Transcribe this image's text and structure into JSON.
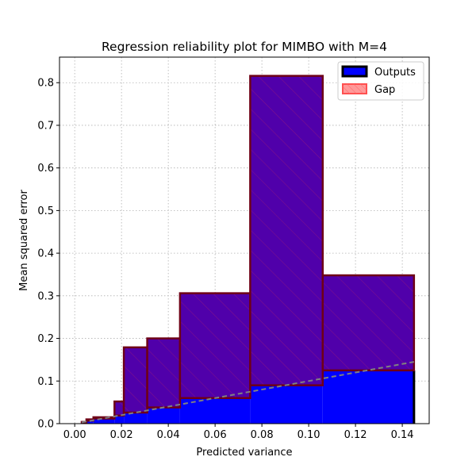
{
  "chart_data": {
    "type": "bar",
    "title": "Regression reliability plot for MIMBO with M=4",
    "xlabel": "Predicted variance",
    "ylabel": "Mean squared error",
    "xlim": [
      -0.0065,
      0.1515
    ],
    "ylim": [
      0,
      0.86
    ],
    "xticks": [
      0.0,
      0.02,
      0.04,
      0.06,
      0.08,
      0.1,
      0.12,
      0.14
    ],
    "xtick_labels": [
      "0.00",
      "0.02",
      "0.04",
      "0.06",
      "0.08",
      "0.10",
      "0.12",
      "0.14"
    ],
    "yticks": [
      0.0,
      0.1,
      0.2,
      0.3,
      0.4,
      0.5,
      0.6,
      0.7,
      0.8
    ],
    "ytick_labels": [
      "0.0",
      "0.1",
      "0.2",
      "0.3",
      "0.4",
      "0.5",
      "0.6",
      "0.7",
      "0.8"
    ],
    "grid": true,
    "legend_position": "top-right",
    "bins": [
      {
        "x0": 0.003,
        "x1": 0.005,
        "output": 0.004,
        "error": 0.003
      },
      {
        "x0": 0.005,
        "x1": 0.008,
        "output": 0.007,
        "error": 0.01
      },
      {
        "x0": 0.008,
        "x1": 0.017,
        "output": 0.012,
        "error": 0.015
      },
      {
        "x0": 0.017,
        "x1": 0.021,
        "output": 0.019,
        "error": 0.052
      },
      {
        "x0": 0.021,
        "x1": 0.031,
        "output": 0.026,
        "error": 0.179
      },
      {
        "x0": 0.031,
        "x1": 0.045,
        "output": 0.038,
        "error": 0.2
      },
      {
        "x0": 0.045,
        "x1": 0.075,
        "output": 0.06,
        "error": 0.306
      },
      {
        "x0": 0.075,
        "x1": 0.106,
        "output": 0.09,
        "error": 0.816
      },
      {
        "x0": 0.106,
        "x1": 0.145,
        "output": 0.125,
        "error": 0.348
      }
    ],
    "diagonal": {
      "x0": 0.003,
      "x1": 0.145
    },
    "series": [
      {
        "name": "Outputs",
        "color": "#0000ff",
        "edge_color": "#000000"
      },
      {
        "name": "Gap",
        "color": "#ff0000",
        "edge_color": "#ff0000",
        "hatch": "/"
      }
    ],
    "colors": {
      "gap_fill": "#5000aa",
      "gap_edge": "#6e0017",
      "diagonal": "#808080",
      "grid": "#b0b0b0"
    }
  }
}
